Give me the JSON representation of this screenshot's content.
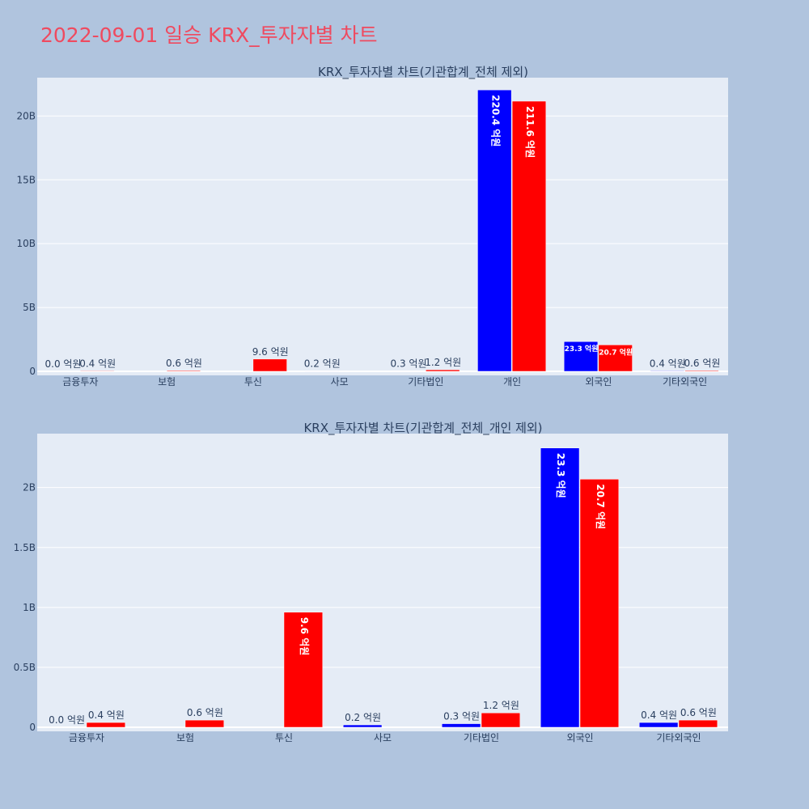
{
  "page_title": "2022-09-01 일승 KRX_투자자별 차트",
  "colors": {
    "series_a": "#0000ff",
    "series_b": "#ff0000",
    "plot_bg": "#e5ecf6",
    "title": "#ef4a5f"
  },
  "chart_data": [
    {
      "type": "bar",
      "title": "KRX_투자자별 차트(기관합계_전체 제외)",
      "categories": [
        "금융투자",
        "보험",
        "투신",
        "사모",
        "기타법인",
        "개인",
        "외국인",
        "기타외국인"
      ],
      "y_ticks": [
        "0",
        "5B",
        "10B",
        "15B",
        "20B"
      ],
      "ylim": [
        0,
        23000000000
      ],
      "grid": true,
      "series": [
        {
          "color": "#0000ff",
          "values": [
            0,
            null,
            null,
            20000000,
            30000000,
            22040000000,
            2330000000,
            40000000
          ],
          "labels": [
            "0.0 억원",
            "",
            "",
            "0.2 억원",
            "0.3 억원",
            "220.4 억원",
            "23.3 억원",
            "0.4 억원"
          ]
        },
        {
          "color": "#ff0000",
          "values": [
            40000000,
            60000000,
            960000000,
            null,
            120000000,
            21160000000,
            2070000000,
            60000000
          ],
          "labels": [
            "0.4 억원",
            "0.6 억원",
            "9.6 억원",
            "",
            "1.2 억원",
            "211.6 억원",
            "20.7 억원",
            "0.6 억원"
          ]
        }
      ]
    },
    {
      "type": "bar",
      "title": "KRX_투자자별 차트(기관합계_전체_개인 제외)",
      "categories": [
        "금융투자",
        "보험",
        "투신",
        "사모",
        "기타법인",
        "외국인",
        "기타외국인"
      ],
      "y_ticks": [
        "0",
        "0.5B",
        "1B",
        "1.5B",
        "2B"
      ],
      "ylim": [
        0,
        2450000000
      ],
      "grid": true,
      "series": [
        {
          "color": "#0000ff",
          "values": [
            0,
            null,
            null,
            20000000,
            30000000,
            2330000000,
            40000000
          ],
          "labels": [
            "0.0 억원",
            "",
            "",
            "0.2 억원",
            "0.3 억원",
            "23.3 억원",
            "0.4 억원"
          ]
        },
        {
          "color": "#ff0000",
          "values": [
            40000000,
            60000000,
            960000000,
            null,
            120000000,
            2070000000,
            60000000
          ],
          "labels": [
            "0.4 억원",
            "0.6 억원",
            "9.6 억원",
            "",
            "1.2 억원",
            "20.7 억원",
            "0.6 억원"
          ]
        }
      ]
    }
  ]
}
